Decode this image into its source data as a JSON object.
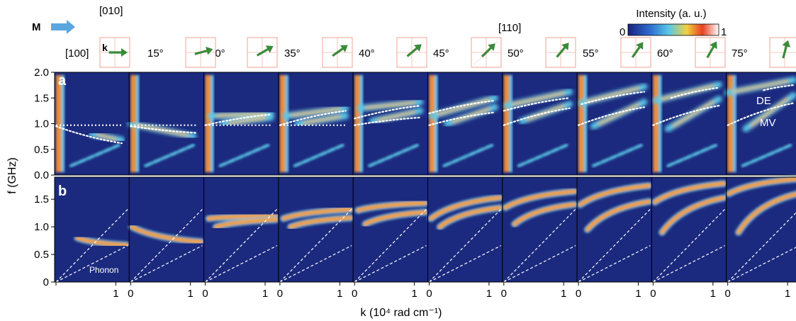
{
  "figure": {
    "magnetization_label": "M",
    "wavevector_label": "k",
    "crystal_axes": {
      "axis_010": "[010]",
      "axis_100": "[100]",
      "axis_110": "[110]"
    },
    "colorbar": {
      "title": "Intensity (a. u.)",
      "min_label": "0",
      "max_label": "1"
    },
    "panel_a_label": "a",
    "panel_b_label": "b",
    "annotations": {
      "de": "DE",
      "mv": "MV",
      "phonon": "Phonon"
    },
    "ylabel": "f (GHz)",
    "xlabel": "k (10⁴ rad cm⁻¹)"
  },
  "chart_data": {
    "type": "heatmap",
    "xlabel": "k (10⁴ rad cm⁻¹)",
    "ylabel": "f (GHz)",
    "xlim": [
      0,
      1.2
    ],
    "ylim_top": [
      0,
      2.0
    ],
    "ylim_bottom": [
      0,
      1.9
    ],
    "yticks_top": [
      "0.0",
      "0.5",
      "1.0",
      "1.5",
      "2.0"
    ],
    "yticks_bottom": [
      "0",
      "0.5",
      "1.0",
      "1.5"
    ],
    "xtick_labels": [
      [
        "",
        "1"
      ],
      [
        "0",
        "1"
      ],
      [
        "0",
        "1"
      ],
      [
        "0",
        "1"
      ],
      [
        "0",
        "1"
      ],
      [
        "0",
        "1"
      ],
      [
        "0",
        "1"
      ],
      [
        "0",
        "1"
      ],
      [
        "0",
        "1"
      ],
      [
        "0",
        "1"
      ]
    ],
    "angles": [
      {
        "label": "[100]",
        "deg": 0
      },
      {
        "label": "15°",
        "deg": 15
      },
      {
        "label": "30°",
        "deg": 30
      },
      {
        "label": "35°",
        "deg": 35
      },
      {
        "label": "40°",
        "deg": 40
      },
      {
        "label": "45°",
        "deg": 45
      },
      {
        "label": "50°",
        "deg": 50
      },
      {
        "label": "55°",
        "deg": 55
      },
      {
        "label": "60°",
        "deg": 60
      },
      {
        "label": "75°",
        "deg": 75
      }
    ],
    "magnon_branches": [
      [
        {
          "k0": 0.6,
          "k1": 1.1,
          "f0": 0.8,
          "f1": 0.68
        }
      ],
      [
        {
          "k0": 0.0,
          "k1": 1.05,
          "f0": 1.0,
          "f1": 0.75
        }
      ],
      [
        {
          "k0": 0.1,
          "k1": 1.1,
          "f0": 1.15,
          "f1": 1.2
        },
        {
          "k0": 0.3,
          "k1": 1.1,
          "f0": 1.0,
          "f1": 1.12
        }
      ],
      [
        {
          "k0": 0.1,
          "k1": 1.1,
          "f0": 1.15,
          "f1": 1.3
        },
        {
          "k0": 0.3,
          "k1": 1.1,
          "f0": 1.0,
          "f1": 1.15
        }
      ],
      [
        {
          "k0": 0.1,
          "k1": 1.1,
          "f0": 1.3,
          "f1": 1.42
        },
        {
          "k0": 0.3,
          "k1": 1.1,
          "f0": 1.05,
          "f1": 1.25
        }
      ],
      [
        {
          "k0": 0.05,
          "k1": 1.1,
          "f0": 1.15,
          "f1": 1.5
        },
        {
          "k0": 0.3,
          "k1": 1.1,
          "f0": 1.0,
          "f1": 1.32
        }
      ],
      [
        {
          "k0": 0.05,
          "k1": 1.1,
          "f0": 1.35,
          "f1": 1.62
        },
        {
          "k0": 0.3,
          "k1": 1.1,
          "f0": 1.05,
          "f1": 1.38
        }
      ],
      [
        {
          "k0": 0.05,
          "k1": 1.1,
          "f0": 1.4,
          "f1": 1.72
        },
        {
          "k0": 0.25,
          "k1": 1.1,
          "f0": 0.95,
          "f1": 1.42
        }
      ],
      [
        {
          "k0": 0.05,
          "k1": 1.1,
          "f0": 1.45,
          "f1": 1.76
        },
        {
          "k0": 0.25,
          "k1": 1.1,
          "f0": 0.9,
          "f1": 1.48
        }
      ],
      [
        {
          "k0": 0.0,
          "k1": 1.1,
          "f0": 1.6,
          "f1": 1.85
        },
        {
          "k0": 0.3,
          "k1": 1.1,
          "f0": 0.9,
          "f1": 1.55
        }
      ]
    ],
    "phonon_slopes": [
      1.1,
      0.55
    ],
    "de_curves": [
      {
        "k0": 0.0,
        "k1": 1.1,
        "f0": 0.95,
        "f1": 0.62
      },
      {
        "k0": 0.0,
        "k1": 1.1,
        "f0": 0.95,
        "f1": 0.82
      },
      {
        "k0": 0.0,
        "k1": 1.1,
        "f0": 0.97,
        "f1": 1.18
      },
      {
        "k0": 0.0,
        "k1": 1.1,
        "f0": 0.97,
        "f1": 1.25
      },
      {
        "k0": 0.0,
        "k1": 1.1,
        "f0": 1.1,
        "f1": 1.35
      },
      {
        "k0": 0.0,
        "k1": 1.1,
        "f0": 1.2,
        "f1": 1.45
      },
      {
        "k0": 0.0,
        "k1": 1.1,
        "f0": 1.25,
        "f1": 1.5
      },
      {
        "k0": 0.05,
        "k1": 1.1,
        "f0": 1.38,
        "f1": 1.62
      },
      {
        "k0": 0.3,
        "k1": 1.1,
        "f0": 1.5,
        "f1": 1.7
      },
      {
        "k0": 0.6,
        "k1": 1.1,
        "f0": 1.65,
        "f1": 1.75
      }
    ],
    "mv_curves": [
      null,
      null,
      null,
      null,
      {
        "k0": 0.0,
        "k1": 1.1,
        "f0": 0.97,
        "f1": 1.12
      },
      {
        "k0": 0.0,
        "k1": 1.1,
        "f0": 0.97,
        "f1": 1.22
      },
      {
        "k0": 0.0,
        "k1": 1.1,
        "f0": 0.97,
        "f1": 1.3
      },
      {
        "k0": 0.0,
        "k1": 1.1,
        "f0": 0.97,
        "f1": 1.32
      },
      {
        "k0": 0.0,
        "k1": 1.1,
        "f0": 0.97,
        "f1": 1.35
      },
      {
        "k0": 0.0,
        "k1": 1.1,
        "f0": 0.97,
        "f1": 1.4
      }
    ],
    "colormap": [
      "#1a2a80",
      "#2f6fd0",
      "#5ac8e8",
      "#f0d040",
      "#e84020",
      "#ffffff"
    ]
  }
}
